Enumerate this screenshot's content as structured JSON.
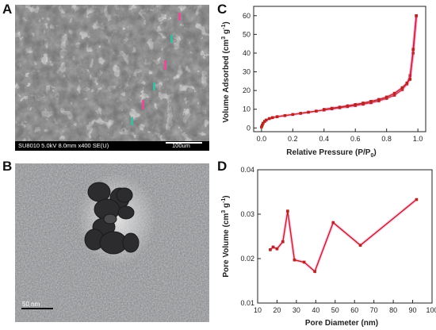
{
  "panels": {
    "a": {
      "letter": "A",
      "footer_info": "SU8010 5.0kV 8.0mm x400 SE(U)",
      "scale_label": "100um"
    },
    "b": {
      "letter": "B",
      "scale_label": "50 nm"
    },
    "c": {
      "letter": "C"
    },
    "d": {
      "letter": "D"
    }
  },
  "colors": {
    "line": "#b5261e",
    "marker": "#b5261e",
    "halo": "#ff66cc",
    "axis": "#222222"
  },
  "chart_data": [
    {
      "type": "line",
      "panel": "C",
      "xlabel": "Relative Pressure (P/P",
      "xlabel_sub": "0",
      "xlabel_end": ")",
      "ylabel": "Volume Adsorbed (cm",
      "ylabel_sup1": "3",
      "ylabel_mid": " g",
      "ylabel_sup2": "-1",
      "ylabel_end": ")",
      "xlim": [
        -0.05,
        1.05
      ],
      "ylim": [
        -2,
        65
      ],
      "xticks": [
        "0.0",
        "0.2",
        "0.4",
        "0.6",
        "0.8",
        "1.0"
      ],
      "xtick_values": [
        0,
        0.2,
        0.4,
        0.6,
        0.8,
        1.0
      ],
      "yticks": [
        "0",
        "10",
        "20",
        "30",
        "40",
        "50",
        "60"
      ],
      "ytick_values": [
        0,
        10,
        20,
        30,
        40,
        50,
        60
      ],
      "series": [
        {
          "x": [
            0.0,
            0.005,
            0.01,
            0.02,
            0.03,
            0.05,
            0.07,
            0.1,
            0.15,
            0.2,
            0.25,
            0.3,
            0.35,
            0.4,
            0.45,
            0.5,
            0.55,
            0.6,
            0.65,
            0.7,
            0.75,
            0.8,
            0.85,
            0.9,
            0.93,
            0.95,
            0.97,
            0.99
          ],
          "y": [
            0.5,
            1.5,
            2.5,
            3.5,
            4.2,
            5.0,
            5.5,
            6.0,
            6.6,
            7.2,
            7.8,
            8.4,
            9.0,
            9.6,
            10.2,
            10.8,
            11.4,
            12.0,
            12.7,
            13.5,
            14.5,
            15.8,
            17.5,
            20.5,
            23.5,
            28.0,
            40.0,
            60.0
          ]
        },
        {
          "x": [
            0.99,
            0.97,
            0.95,
            0.93,
            0.9,
            0.85,
            0.8,
            0.75,
            0.7,
            0.65,
            0.6,
            0.55,
            0.5,
            0.45,
            0.4
          ],
          "y": [
            60.0,
            42.0,
            26.0,
            24.0,
            21.5,
            18.5,
            16.5,
            15.2,
            14.2,
            13.3,
            12.5,
            11.8,
            11.1,
            10.5,
            9.9
          ]
        }
      ]
    },
    {
      "type": "line",
      "panel": "D",
      "xlabel": "Pore Diameter (nm)",
      "ylabel": "Pore Volume (cm",
      "ylabel_sup1": "3",
      "ylabel_mid": " g",
      "ylabel_sup2": "-1",
      "ylabel_end": ")",
      "xlim": [
        10,
        100
      ],
      "ylim": [
        0.01,
        0.04
      ],
      "xticks": [
        "10",
        "20",
        "30",
        "40",
        "50",
        "60",
        "70",
        "80",
        "90",
        "100"
      ],
      "xtick_values": [
        10,
        20,
        30,
        40,
        50,
        60,
        70,
        80,
        90,
        100
      ],
      "yticks": [
        "0.01",
        "0.02",
        "0.03",
        "0.04"
      ],
      "ytick_values": [
        0.01,
        0.02,
        0.03,
        0.04
      ],
      "series": [
        {
          "x": [
            16.5,
            18.0,
            20.0,
            23.0,
            25.5,
            29.0,
            34.0,
            39.5,
            49.0,
            63.0,
            92.0
          ],
          "y": [
            0.022,
            0.0226,
            0.0222,
            0.0238,
            0.0307,
            0.0197,
            0.0192,
            0.0171,
            0.0281,
            0.023,
            0.0333
          ]
        }
      ]
    }
  ]
}
